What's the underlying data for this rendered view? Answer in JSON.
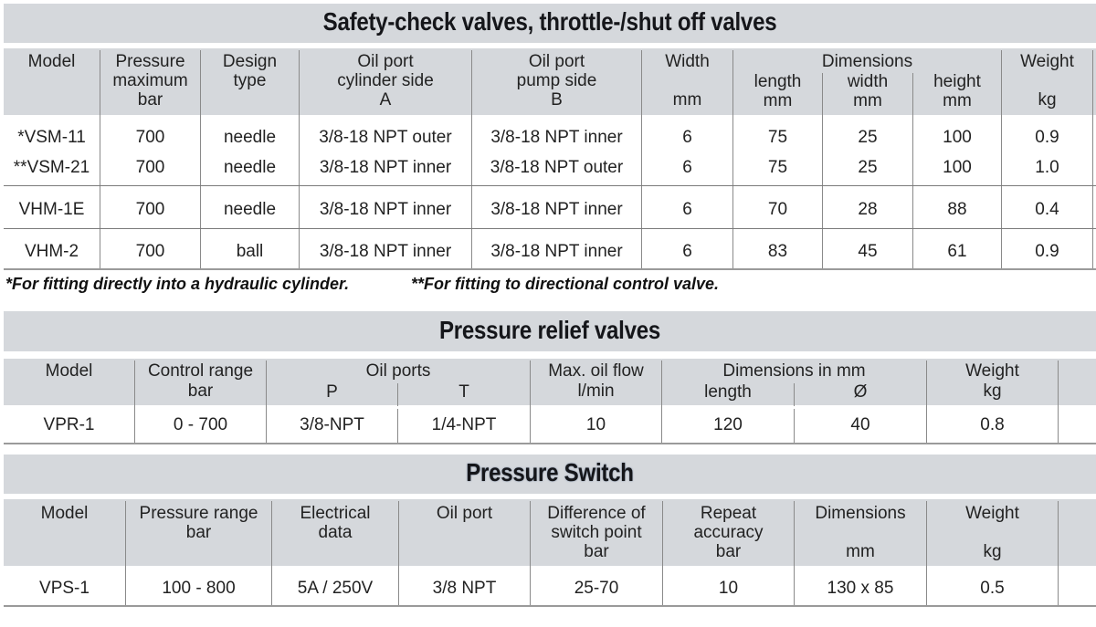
{
  "table1": {
    "title": "Safety-check valves, throttle-/shut off valves",
    "headers": {
      "model": "Model",
      "pressure": [
        "Pressure",
        "maximum",
        "bar"
      ],
      "design": [
        "Design",
        "type"
      ],
      "oil_a": [
        "Oil port",
        "cylinder side",
        "A"
      ],
      "oil_b": [
        "Oil port",
        "pump side",
        "B"
      ],
      "width": [
        "Width",
        "mm"
      ],
      "dimensions": "Dimensions",
      "length": [
        "length",
        "mm"
      ],
      "dwidth": [
        "width",
        "mm"
      ],
      "height": [
        "height",
        "mm"
      ],
      "weight": [
        "Weight",
        "kg"
      ]
    },
    "rows": [
      {
        "model": "*VSM-11",
        "pressure": "700",
        "design": "needle",
        "oil_a": "3/8-18 NPT outer",
        "oil_b": "3/8-18 NPT inner",
        "width": "6",
        "length": "75",
        "dwidth": "25",
        "height": "100",
        "weight": "0.9"
      },
      {
        "model": "**VSM-21",
        "pressure": "700",
        "design": "needle",
        "oil_a": "3/8-18 NPT inner",
        "oil_b": "3/8-18 NPT outer",
        "width": "6",
        "length": "75",
        "dwidth": "25",
        "height": "100",
        "weight": "1.0"
      },
      {
        "model": "VHM-1E",
        "pressure": "700",
        "design": "needle",
        "oil_a": "3/8-18 NPT inner",
        "oil_b": "3/8-18 NPT inner",
        "width": "6",
        "length": "70",
        "dwidth": "28",
        "height": "88",
        "weight": "0.4"
      },
      {
        "model": "VHM-2",
        "pressure": "700",
        "design": "ball",
        "oil_a": "3/8-18 NPT inner",
        "oil_b": "3/8-18 NPT inner",
        "width": "6",
        "length": "83",
        "dwidth": "45",
        "height": "61",
        "weight": "0.9"
      }
    ],
    "footnote1": "*For fitting directly into a hydraulic cylinder.",
    "footnote2": "**For fitting to directional control valve."
  },
  "table2": {
    "title": "Pressure relief valves",
    "headers": {
      "model": "Model",
      "control": [
        "Control range",
        "bar"
      ],
      "oil_ports": "Oil ports",
      "p": "P",
      "t": "T",
      "flow": [
        "Max. oil flow",
        "l/min"
      ],
      "dims": "Dimensions in mm",
      "length": "length",
      "diameter": "Ø",
      "weight": [
        "Weight",
        "kg"
      ]
    },
    "row": {
      "model": "VPR-1",
      "control": "0 - 700",
      "p": "3/8-NPT",
      "t": "1/4-NPT",
      "flow": "10",
      "length": "120",
      "diameter": "40",
      "weight": "0.8"
    }
  },
  "table3": {
    "title": "Pressure Switch",
    "headers": {
      "model": "Model",
      "range": [
        "Pressure range",
        "bar"
      ],
      "electrical": [
        "Electrical",
        "data"
      ],
      "oil": "Oil port",
      "diff": [
        "Difference of",
        "switch point",
        "bar"
      ],
      "repeat": [
        "Repeat",
        "accuracy",
        "bar"
      ],
      "dims": [
        "Dimensions",
        "mm"
      ],
      "weight": [
        "Weight",
        "kg"
      ]
    },
    "row": {
      "model": "VPS-1",
      "range": "100 - 800",
      "electrical": "5A / 250V",
      "oil": "3/8 NPT",
      "diff": "25-70",
      "repeat": "10",
      "dims": "130 x 85",
      "weight": "0.5"
    }
  }
}
